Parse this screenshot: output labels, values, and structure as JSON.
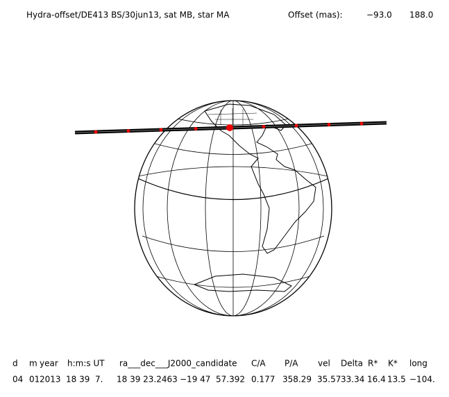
{
  "header": {
    "title": "Hydra-offset/DE413 BS/30jun13, sat MB, star MA",
    "offset_label": "Offset (mas):",
    "offset_values": [
      "−93.0",
      "188.0"
    ]
  },
  "table": {
    "columns": [
      "d",
      "m",
      "year",
      "h:m:s UT",
      "ra___dec___J2000_candidate",
      "C/A",
      "P/A",
      "vel",
      "Delta",
      "R*",
      "K*",
      "long"
    ],
    "row": [
      "04",
      "01",
      "2013",
      "18 39  7.",
      "18 39 23.2463",
      "−19 47  57.392",
      "0.177",
      "358.29",
      "35.57",
      "33.34",
      "16.4",
      "13.5",
      "−104."
    ]
  }
}
